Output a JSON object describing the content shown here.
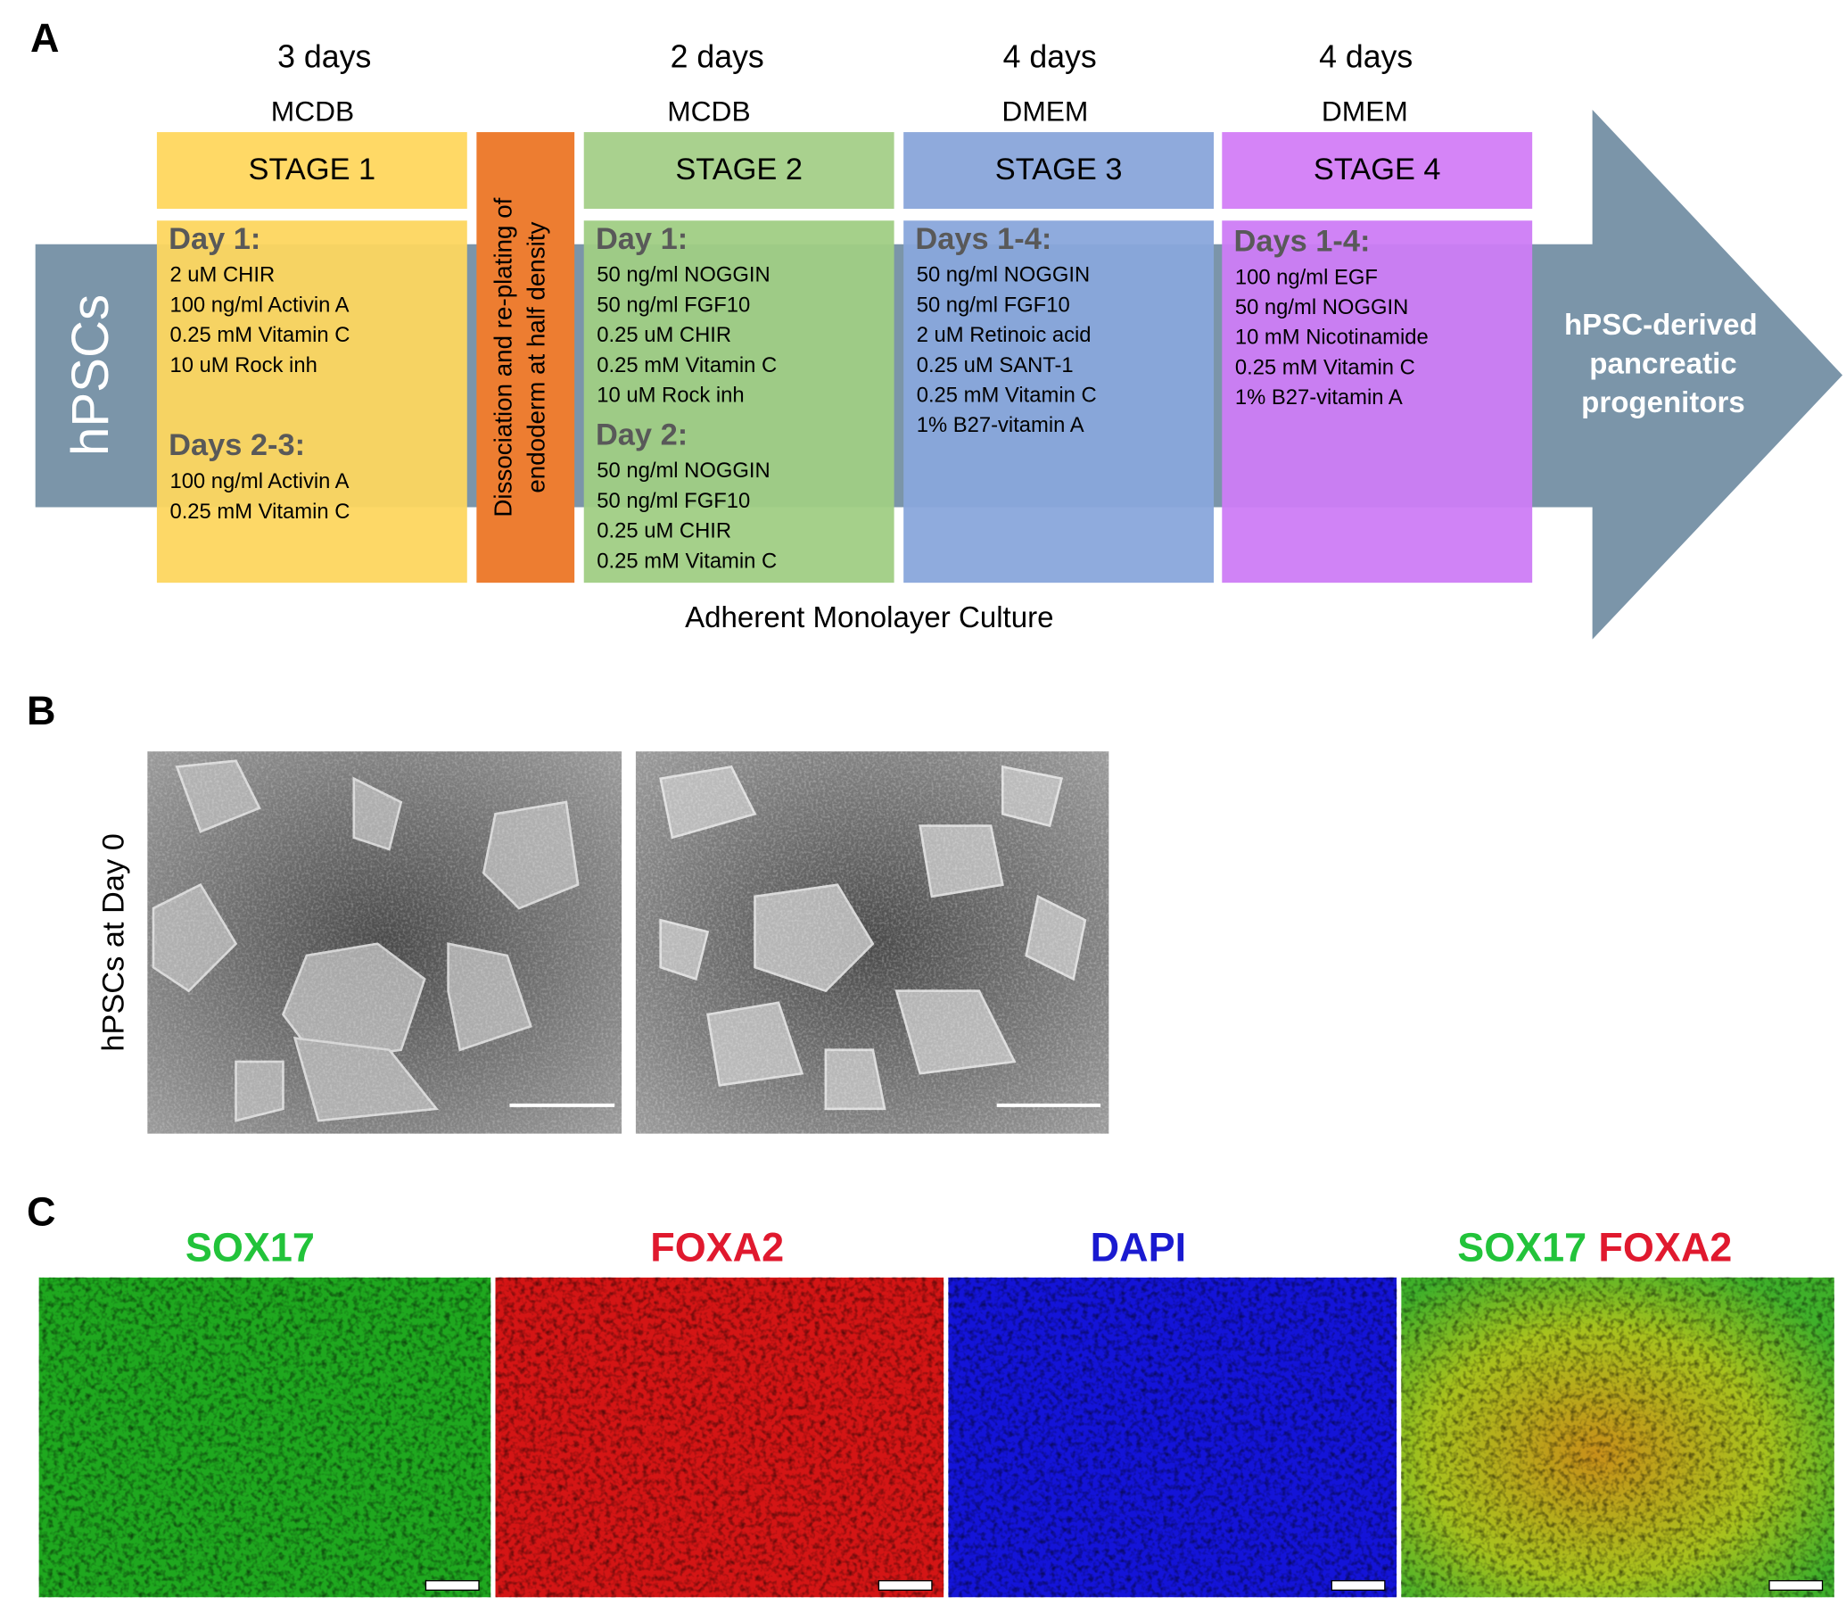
{
  "panel_a": {
    "label": "A",
    "start": "hPSCs",
    "result": [
      "hPSC-derived",
      "pancreatic",
      "progenitors"
    ],
    "dissociation": [
      "Dissociation and re-plating of",
      "endoderm at half density"
    ],
    "footer": "Adherent Monolayer Culture",
    "stages": [
      {
        "duration": "3 days",
        "medium": "MCDB",
        "name": "STAGE 1",
        "blocks": [
          {
            "heading": "Day 1:",
            "items": [
              "2 uM CHIR",
              "100 ng/ml Activin A",
              "0.25 mM Vitamin C",
              "10 uM Rock inh"
            ]
          },
          {
            "heading": "Days 2-3:",
            "items": [
              "100 ng/ml Activin A",
              "0.25 mM Vitamin C"
            ]
          }
        ]
      },
      {
        "duration": "2 days",
        "medium": "MCDB",
        "name": "STAGE 2",
        "blocks": [
          {
            "heading": "Day 1:",
            "items": [
              "50 ng/ml NOGGIN",
              "50 ng/ml FGF10",
              "0.25 uM CHIR",
              "0.25 mM Vitamin C",
              "10 uM Rock inh"
            ]
          },
          {
            "heading": "Day 2:",
            "items": [
              "50 ng/ml NOGGIN",
              "50 ng/ml FGF10",
              "0.25 uM CHIR",
              "0.25 mM Vitamin C"
            ]
          }
        ]
      },
      {
        "duration": "4 days",
        "medium": "DMEM",
        "name": "STAGE 3",
        "blocks": [
          {
            "heading": "Days 1-4:",
            "items": [
              "50 ng/ml NOGGIN",
              "50 ng/ml FGF10",
              "2 uM Retinoic acid",
              "0.25 uM SANT-1",
              "0.25 mM Vitamin C",
              "1% B27-vitamin A"
            ]
          }
        ]
      },
      {
        "duration": "4 days",
        "medium": "DMEM",
        "name": "STAGE 4",
        "blocks": [
          {
            "heading": "Days 1-4:",
            "items": [
              "100 ng/ml EGF",
              "50 ng/ml NOGGIN",
              "10 mM Nicotinamide",
              "0.25 mM Vitamin C",
              "1% B27-vitamin A"
            ]
          }
        ]
      }
    ]
  },
  "panel_b": {
    "label": "B",
    "ylabel": "hPSCs at Day 0"
  },
  "panel_c": {
    "label": "C",
    "images": [
      {
        "labels": [
          "SOX17"
        ]
      },
      {
        "labels": [
          "FOXA2"
        ]
      },
      {
        "labels": [
          "DAPI"
        ]
      },
      {
        "labels": [
          "SOX17",
          "FOXA2"
        ]
      }
    ]
  }
}
